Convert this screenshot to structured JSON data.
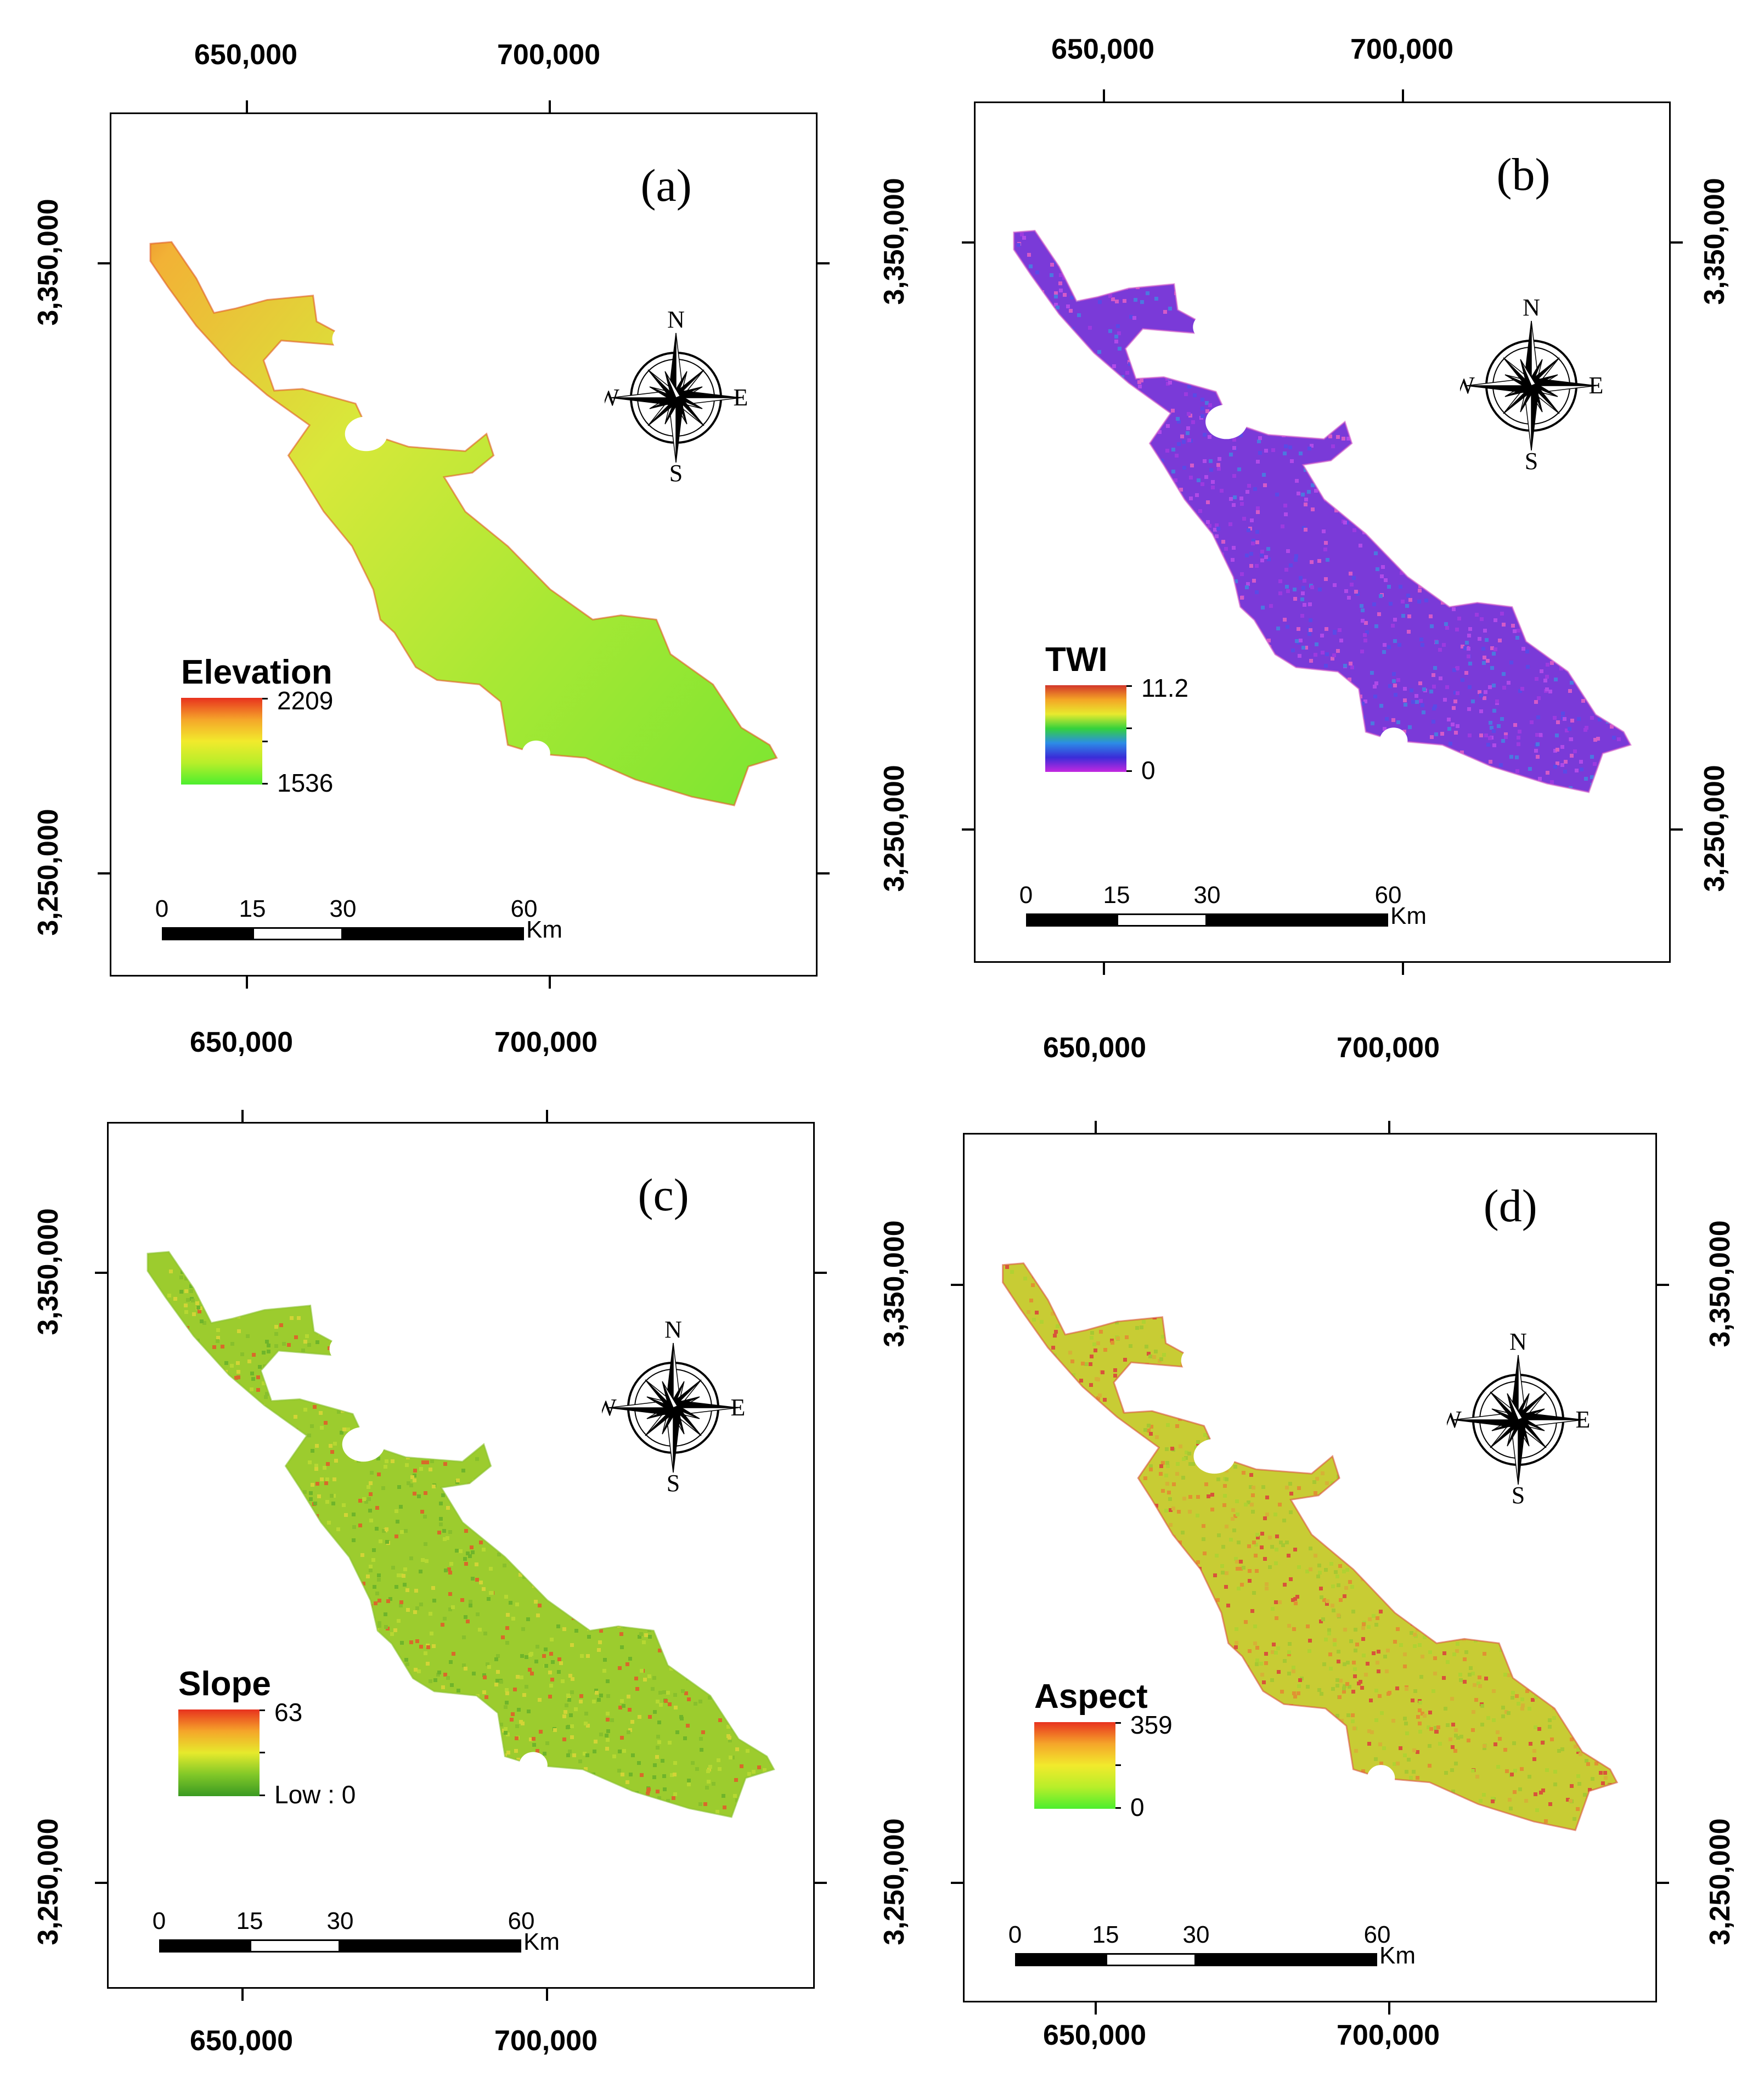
{
  "panels": [
    {
      "id": "a",
      "label": "(a)",
      "legend_title": "Elevation",
      "legend_max": "2209",
      "legend_min": "1536",
      "ramp": [
        "#e8321e",
        "#f5a52a",
        "#f2ea2c",
        "#b8ee2a",
        "#4cee2e"
      ],
      "fill_colors": [
        "#c6e83a",
        "#9ee532",
        "#e8dc36",
        "#7de530",
        "#f0b437",
        "#e05a22"
      ],
      "x_ticks_top": [
        "650,000",
        "700,000"
      ],
      "x_ticks_bottom": [],
      "y_ticks_left": [
        "3,350,000",
        "3,250,000"
      ],
      "y_ticks_right": []
    },
    {
      "id": "b",
      "label": "(b)",
      "legend_title": "TWI",
      "legend_max": "11.2",
      "legend_min": "0",
      "ramp": [
        "#d2362a",
        "#f4a526",
        "#e8ea2e",
        "#34d23c",
        "#2c8ce6",
        "#3a2cd8",
        "#c428e0"
      ],
      "fill_colors": [
        "#7a3ad8",
        "#9c3ae0",
        "#5a4ae6",
        "#b04ae8",
        "#4c78e0",
        "#d45ac8"
      ],
      "x_ticks_top": [
        "650,000",
        "700,000"
      ],
      "x_ticks_bottom": [],
      "y_ticks_left": [
        "3,350,000",
        "3,250,000"
      ],
      "y_ticks_right": [
        "3,350,000",
        "3,250,000"
      ]
    },
    {
      "id": "c",
      "label": "(c)",
      "legend_title": "Slope",
      "legend_max": "63",
      "legend_min": "Low : 0",
      "ramp": [
        "#e8321e",
        "#f5a52a",
        "#e6ea2c",
        "#82c828",
        "#3a9a22"
      ],
      "fill_colors": [
        "#9ccc2e",
        "#b6d832",
        "#6fb52a",
        "#d2d436",
        "#d86a2a",
        "#88c02c"
      ],
      "x_ticks_top": [
        "650,000",
        "700,000"
      ],
      "x_ticks_bottom": [
        "650,000",
        "700,000"
      ],
      "y_ticks_left": [
        "3,350,000",
        "3,250,000"
      ],
      "y_ticks_right": []
    },
    {
      "id": "d",
      "label": "(d)",
      "legend_title": "Aspect",
      "legend_max": "359",
      "legend_min": "0",
      "ramp": [
        "#e8321e",
        "#f5a52a",
        "#f2ea2c",
        "#b8ee2a",
        "#4cee2e"
      ],
      "fill_colors": [
        "#c8cc34",
        "#d6b236",
        "#a6c832",
        "#e09232",
        "#b0d232",
        "#d8543a"
      ],
      "x_ticks_top": [
        "650,000",
        "700,000"
      ],
      "x_ticks_bottom": [
        "650,000",
        "700,000"
      ],
      "y_ticks_left": [
        "3,350,000",
        "3,250,000"
      ],
      "y_ticks_right": [
        "3,350,000",
        "3,250,000"
      ]
    }
  ],
  "compass": {
    "n": "N",
    "s": "S",
    "e": "E",
    "w": "W"
  },
  "scale_bar": {
    "ticks": [
      "0",
      "15",
      "30",
      "60"
    ],
    "unit": "Km"
  }
}
